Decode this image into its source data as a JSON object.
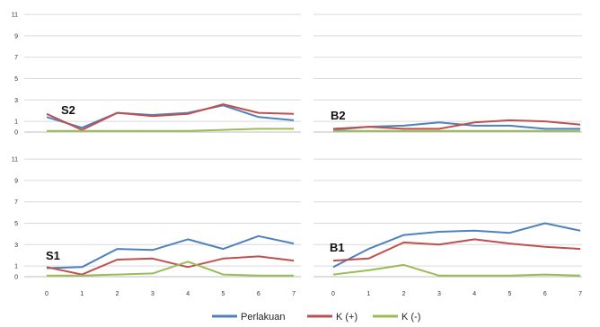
{
  "chart_data": {
    "type": "line",
    "x": [
      0,
      1,
      2,
      3,
      4,
      5,
      6,
      7
    ],
    "y_ticks": [
      0,
      1,
      3,
      5,
      7,
      9,
      11
    ],
    "x_ticks": [
      0,
      1,
      2,
      3,
      4,
      5,
      6,
      7
    ],
    "ylim": [
      0,
      11.5
    ],
    "grid": "horizontal",
    "legend": {
      "position": "bottom",
      "entries": [
        {
          "name": "Perlakuan",
          "color": "#4f81bd"
        },
        {
          "name": "K (+)",
          "color": "#c0504d"
        },
        {
          "name": "K (-)",
          "color": "#9bbb59"
        }
      ]
    },
    "panels": [
      {
        "id": "S2",
        "label": "S2",
        "series": [
          {
            "name": "Perlakuan",
            "color": "#4f81bd",
            "values": [
              1.4,
              0.4,
              1.8,
              1.6,
              1.8,
              2.5,
              1.4,
              1.1
            ]
          },
          {
            "name": "K (+)",
            "color": "#c0504d",
            "values": [
              1.7,
              0.2,
              1.8,
              1.5,
              1.7,
              2.6,
              1.8,
              1.7
            ]
          },
          {
            "name": "K (-)",
            "color": "#9bbb59",
            "values": [
              0.1,
              0.1,
              0.1,
              0.1,
              0.1,
              0.2,
              0.3,
              0.3
            ]
          }
        ]
      },
      {
        "id": "B2",
        "label": "B2",
        "series": [
          {
            "name": "Perlakuan",
            "color": "#4f81bd",
            "values": [
              0.2,
              0.5,
              0.6,
              0.9,
              0.6,
              0.6,
              0.3,
              0.3
            ]
          },
          {
            "name": "K (+)",
            "color": "#c0504d",
            "values": [
              0.3,
              0.5,
              0.3,
              0.3,
              0.9,
              1.1,
              1.0,
              0.7
            ]
          },
          {
            "name": "K (-)",
            "color": "#9bbb59",
            "values": [
              0.1,
              0.1,
              0.1,
              0.1,
              0.1,
              0.1,
              0.1,
              0.1
            ]
          }
        ]
      },
      {
        "id": "S1",
        "label": "S1",
        "series": [
          {
            "name": "Perlakuan",
            "color": "#4f81bd",
            "values": [
              0.8,
              0.9,
              2.6,
              2.5,
              3.5,
              2.6,
              3.8,
              3.1
            ]
          },
          {
            "name": "K (+)",
            "color": "#c0504d",
            "values": [
              0.9,
              0.2,
              1.6,
              1.7,
              0.9,
              1.7,
              1.9,
              1.5
            ]
          },
          {
            "name": "K (-)",
            "color": "#9bbb59",
            "values": [
              0.1,
              0.1,
              0.2,
              0.3,
              1.4,
              0.2,
              0.1,
              0.1
            ]
          }
        ]
      },
      {
        "id": "B1",
        "label": "B1",
        "series": [
          {
            "name": "Perlakuan",
            "color": "#4f81bd",
            "values": [
              0.9,
              2.6,
              3.9,
              4.2,
              4.3,
              4.1,
              5.0,
              4.3
            ]
          },
          {
            "name": "K (+)",
            "color": "#c0504d",
            "values": [
              1.5,
              1.7,
              3.2,
              3.0,
              3.5,
              3.1,
              2.8,
              2.6
            ]
          },
          {
            "name": "K (-)",
            "color": "#9bbb59",
            "values": [
              0.2,
              0.6,
              1.1,
              0.1,
              0.1,
              0.1,
              0.2,
              0.1
            ]
          }
        ]
      }
    ]
  }
}
